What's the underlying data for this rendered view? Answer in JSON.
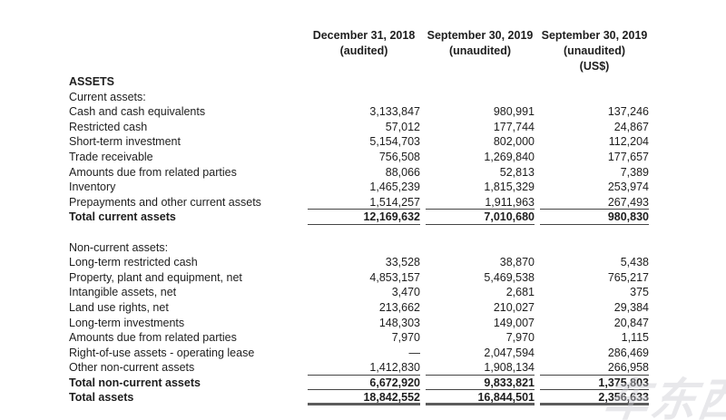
{
  "page": {
    "background": "#ffffff",
    "text_color": "#1e1e1e",
    "rule_color": "#454545",
    "thick_rule_color": "#5c5c5c"
  },
  "header": {
    "columns": [
      {
        "date": "December 31, 2018",
        "status": "(audited)",
        "currency": ""
      },
      {
        "date": "September 30, 2019",
        "status": "(unaudited)",
        "currency": ""
      },
      {
        "date": "September 30, 2019",
        "status": "(unaudited)",
        "currency": "(US$)"
      }
    ]
  },
  "table": {
    "rows": [
      {
        "label": "ASSETS",
        "style": "bold",
        "rule": "",
        "values": [
          "",
          "",
          ""
        ]
      },
      {
        "label": "Current assets:",
        "style": "normal",
        "rule": "",
        "values": [
          "",
          "",
          ""
        ]
      },
      {
        "label": "Cash and cash equivalents",
        "style": "normal",
        "rule": "",
        "values": [
          "3,133,847",
          "980,991",
          "137,246"
        ]
      },
      {
        "label": "Restricted cash",
        "style": "normal",
        "rule": "",
        "values": [
          "57,012",
          "177,744",
          "24,867"
        ]
      },
      {
        "label": "Short-term investment",
        "style": "normal",
        "rule": "",
        "values": [
          "5,154,703",
          "802,000",
          "112,204"
        ]
      },
      {
        "label": "Trade receivable",
        "style": "normal",
        "rule": "",
        "values": [
          "756,508",
          "1,269,840",
          "177,657"
        ]
      },
      {
        "label": "Amounts due from related parties",
        "style": "normal",
        "rule": "",
        "values": [
          "88,066",
          "52,813",
          "7,389"
        ]
      },
      {
        "label": "Inventory",
        "style": "normal",
        "rule": "",
        "values": [
          "1,465,239",
          "1,815,329",
          "253,974"
        ]
      },
      {
        "label": "Prepayments and other current assets",
        "style": "normal",
        "rule": "single",
        "values": [
          "1,514,257",
          "1,911,963",
          "267,493"
        ]
      },
      {
        "label": "Total current assets",
        "style": "bold",
        "rule": "single",
        "values": [
          "12,169,632",
          "7,010,680",
          "980,830"
        ]
      },
      {
        "label": "",
        "style": "normal",
        "rule": "",
        "values": [
          "",
          "",
          ""
        ]
      },
      {
        "label": "Non-current assets:",
        "style": "normal",
        "rule": "",
        "values": [
          "",
          "",
          ""
        ]
      },
      {
        "label": "Long-term restricted cash",
        "style": "normal",
        "rule": "",
        "values": [
          "33,528",
          "38,870",
          "5,438"
        ]
      },
      {
        "label": "Property, plant and equipment, net",
        "style": "normal",
        "rule": "",
        "values": [
          "4,853,157",
          "5,469,538",
          "765,217"
        ]
      },
      {
        "label": "Intangible assets, net",
        "style": "normal",
        "rule": "",
        "values": [
          "3,470",
          "2,681",
          "375"
        ]
      },
      {
        "label": "Land use rights, net",
        "style": "normal",
        "rule": "",
        "values": [
          "213,662",
          "210,027",
          "29,384"
        ]
      },
      {
        "label": "Long-term investments",
        "style": "normal",
        "rule": "",
        "values": [
          "148,303",
          "149,007",
          "20,847"
        ]
      },
      {
        "label": "Amounts due from related parties",
        "style": "normal",
        "rule": "",
        "values": [
          "7,970",
          "7,970",
          "1,115"
        ]
      },
      {
        "label": "Right-of-use assets - operating lease",
        "style": "normal",
        "rule": "",
        "values": [
          "—",
          "2,047,594",
          "286,469"
        ]
      },
      {
        "label": "Other non-current assets",
        "style": "normal",
        "rule": "single",
        "values": [
          "1,412,830",
          "1,908,134",
          "266,958"
        ]
      },
      {
        "label": "Total non-current assets",
        "style": "bold",
        "rule": "single",
        "values": [
          "6,672,920",
          "9,833,821",
          "1,375,803"
        ]
      },
      {
        "label": "Total assets",
        "style": "bold",
        "rule": "thick",
        "values": [
          "18,842,552",
          "16,844,501",
          "2,356,633"
        ]
      }
    ]
  },
  "watermark": {
    "text": "车东西"
  }
}
